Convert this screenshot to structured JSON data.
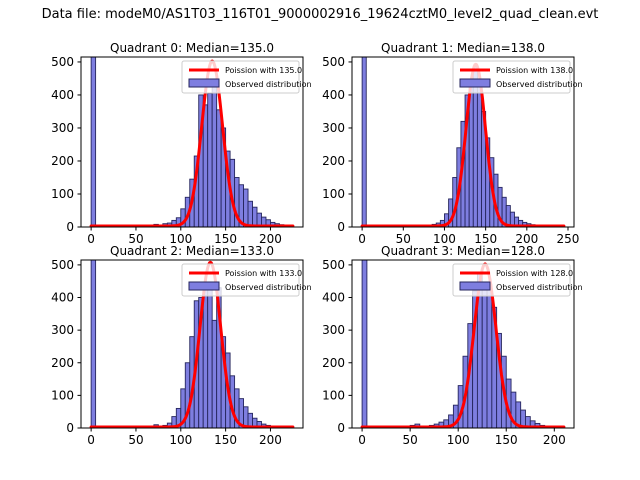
{
  "figure": {
    "suptitle": "Data file: modeM0/AS1T03_116T01_9000002916_19624cztM0_level2_quad_clean.evt"
  },
  "colors": {
    "bar_fill": "#7e7ee0",
    "bar_edge": "#26265e",
    "curve": "#ff0000",
    "axis": "#000000",
    "text": "#000000",
    "legend_border": "#cccccc",
    "legend_bg": "rgba(255,255,255,0.8)"
  },
  "chart_data": [
    {
      "type": "histogram+line",
      "title": "Quadrant 0: Median=135.0",
      "legend": [
        "Poission with 135.0",
        "Observed distribution"
      ],
      "x_ticks": [
        0,
        50,
        100,
        150,
        200
      ],
      "y_ticks": [
        0,
        100,
        200,
        300,
        400,
        500
      ],
      "xlim": [
        -11.3,
        236.3
      ],
      "ylim": [
        0,
        515
      ],
      "bin_start": 0,
      "bin_width": 5,
      "counts": [
        600,
        0,
        0,
        0,
        0,
        0,
        0,
        0,
        0,
        0,
        0,
        3,
        6,
        4,
        8,
        6,
        10,
        12,
        20,
        28,
        55,
        90,
        145,
        215,
        400,
        370,
        405,
        430,
        355,
        300,
        230,
        205,
        150,
        128,
        115,
        78,
        60,
        42,
        30,
        22,
        14,
        10,
        7,
        4,
        3
      ],
      "poisson": {
        "mu": 135.0,
        "peak": 500,
        "baseline": 3
      }
    },
    {
      "type": "histogram+line",
      "title": "Quadrant 1: Median=138.0",
      "legend": [
        "Poission with 138.0",
        "Observed distribution"
      ],
      "x_ticks": [
        0,
        50,
        100,
        150,
        200,
        250
      ],
      "y_ticks": [
        0,
        100,
        200,
        300,
        400,
        500
      ],
      "xlim": [
        -12.3,
        257.3
      ],
      "ylim": [
        0,
        515
      ],
      "bin_start": 0,
      "bin_width": 5,
      "counts": [
        600,
        0,
        0,
        0,
        0,
        0,
        0,
        0,
        0,
        0,
        0,
        0,
        0,
        2,
        3,
        3,
        5,
        8,
        12,
        20,
        40,
        85,
        150,
        240,
        320,
        400,
        440,
        485,
        430,
        350,
        270,
        210,
        160,
        120,
        90,
        65,
        45,
        30,
        20,
        14,
        10,
        7,
        5,
        4,
        3,
        2,
        2,
        1,
        1
      ],
      "poisson": {
        "mu": 138.0,
        "peak": 490,
        "baseline": 3
      }
    },
    {
      "type": "histogram+line",
      "title": "Quadrant 2: Median=133.0",
      "legend": [
        "Poission with 133.0",
        "Observed distribution"
      ],
      "x_ticks": [
        0,
        50,
        100,
        150,
        200
      ],
      "y_ticks": [
        0,
        100,
        200,
        300,
        400,
        500
      ],
      "xlim": [
        -11.3,
        236.3
      ],
      "ylim": [
        0,
        515
      ],
      "bin_start": 0,
      "bin_width": 5,
      "counts": [
        600,
        0,
        0,
        0,
        0,
        0,
        0,
        0,
        0,
        0,
        0,
        0,
        0,
        3,
        10,
        6,
        8,
        15,
        35,
        60,
        120,
        200,
        280,
        390,
        400,
        445,
        430,
        330,
        430,
        280,
        230,
        160,
        120,
        90,
        65,
        45,
        30,
        20,
        12,
        8,
        5,
        4,
        3,
        2,
        2
      ],
      "poisson": {
        "mu": 133.0,
        "peak": 505,
        "baseline": 3
      }
    },
    {
      "type": "histogram+line",
      "title": "Quadrant 3: Median=128.0",
      "legend": [
        "Poission with 128.0",
        "Observed distribution"
      ],
      "x_ticks": [
        0,
        50,
        100,
        150,
        200
      ],
      "y_ticks": [
        0,
        100,
        200,
        300,
        400,
        500
      ],
      "xlim": [
        -10.5,
        220.5
      ],
      "ylim": [
        0,
        515
      ],
      "bin_start": 0,
      "bin_width": 5,
      "counts": [
        600,
        0,
        0,
        0,
        0,
        0,
        0,
        0,
        2,
        3,
        8,
        12,
        6,
        5,
        8,
        12,
        18,
        25,
        40,
        70,
        130,
        220,
        320,
        420,
        475,
        430,
        440,
        370,
        290,
        220,
        150,
        110,
        80,
        55,
        35,
        22,
        14,
        8,
        5,
        3,
        3,
        2
      ],
      "poisson": {
        "mu": 128.0,
        "peak": 500,
        "baseline": 3
      }
    }
  ]
}
